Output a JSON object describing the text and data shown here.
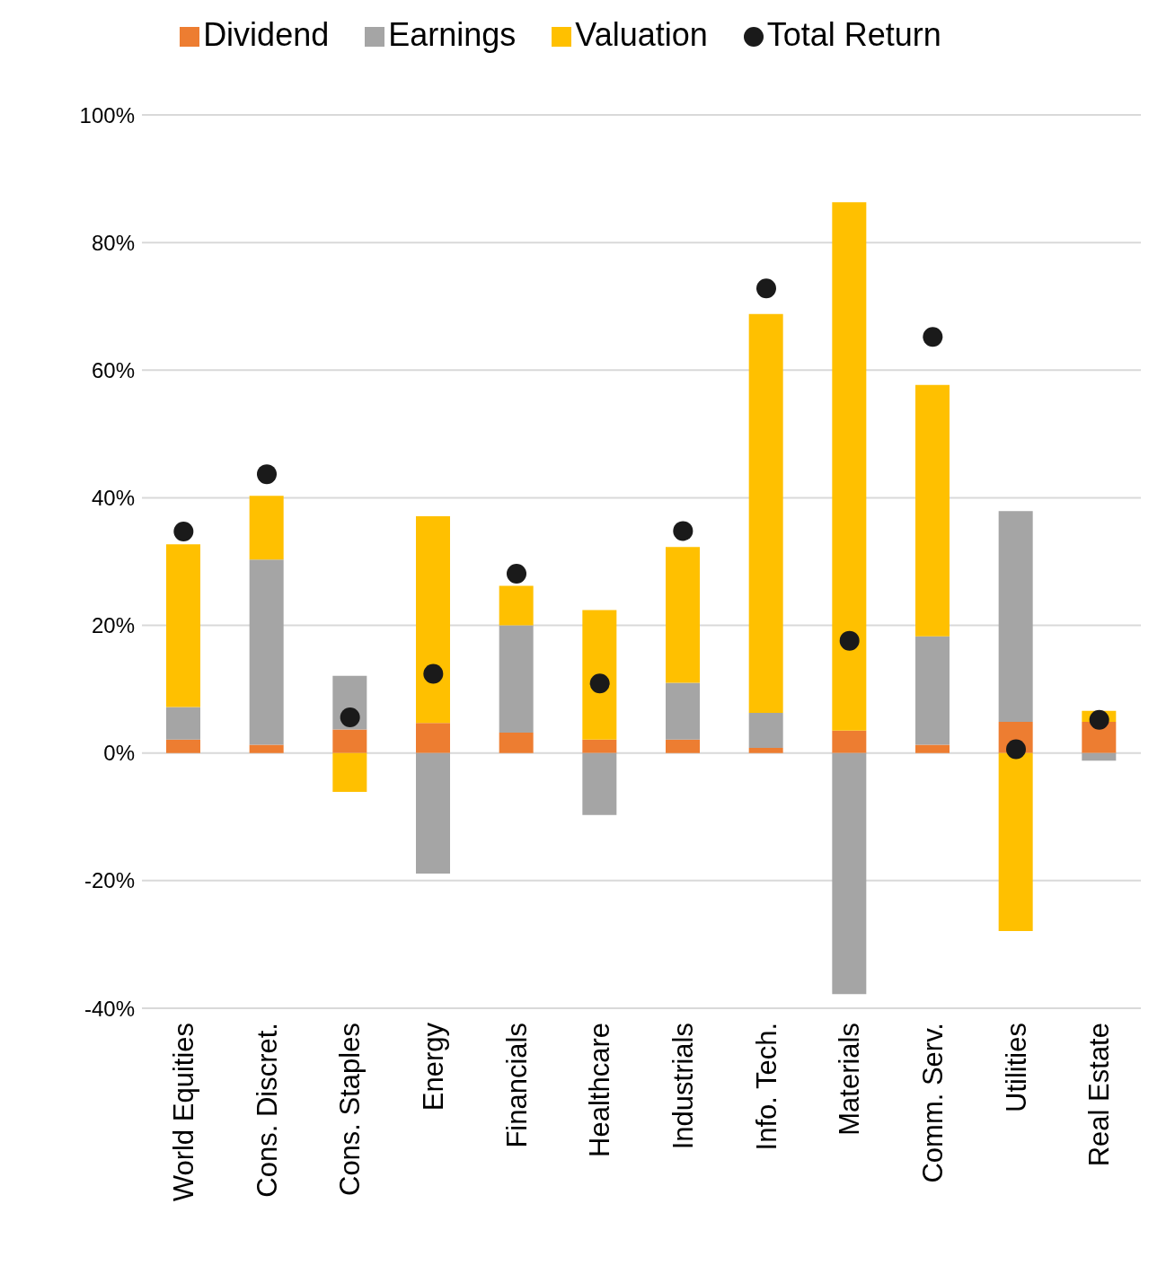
{
  "chart_data": {
    "type": "bar",
    "stacked": true,
    "categories": [
      "World Equities",
      "Cons. Discret.",
      "Cons. Staples",
      "Energy",
      "Financials",
      "Healthcare",
      "Industrials",
      "Info. Tech.",
      "Materials",
      "Comm. Serv.",
      "Utilities",
      "Real Estate"
    ],
    "series": [
      {
        "name": "Dividend",
        "color": "#ed7d31",
        "values": [
          2.1,
          1.3,
          3.7,
          4.7,
          3.2,
          2.1,
          2.1,
          0.8,
          3.5,
          1.3,
          4.9,
          4.9
        ]
      },
      {
        "name": "Earnings",
        "color": "#a5a5a5",
        "values": [
          5.1,
          29.0,
          8.4,
          -18.9,
          16.8,
          -9.7,
          8.9,
          5.5,
          -37.8,
          17.0,
          33.0,
          -1.2
        ]
      },
      {
        "name": "Valuation",
        "color": "#ffc000",
        "values": [
          25.5,
          10.0,
          -6.1,
          32.4,
          6.2,
          20.3,
          21.3,
          62.5,
          82.8,
          39.4,
          -27.9,
          1.7
        ]
      },
      {
        "name": "Total Return",
        "type": "scatter",
        "color": "#1a1a1a",
        "values": [
          34.7,
          43.7,
          5.6,
          12.4,
          28.1,
          10.9,
          34.8,
          72.8,
          17.6,
          65.2,
          0.6,
          5.2
        ]
      }
    ],
    "ylim": [
      -40,
      100
    ],
    "yticks": [
      {
        "value": -40,
        "label": "-40%"
      },
      {
        "value": -20,
        "label": "-20%"
      },
      {
        "value": 0,
        "label": "0%"
      },
      {
        "value": 20,
        "label": "20%"
      },
      {
        "value": 40,
        "label": "40%"
      },
      {
        "value": 60,
        "label": "60%"
      },
      {
        "value": 80,
        "label": "80%"
      },
      {
        "value": 100,
        "label": "100%"
      }
    ],
    "grid": "y",
    "legend": "top",
    "marker": "circle"
  }
}
